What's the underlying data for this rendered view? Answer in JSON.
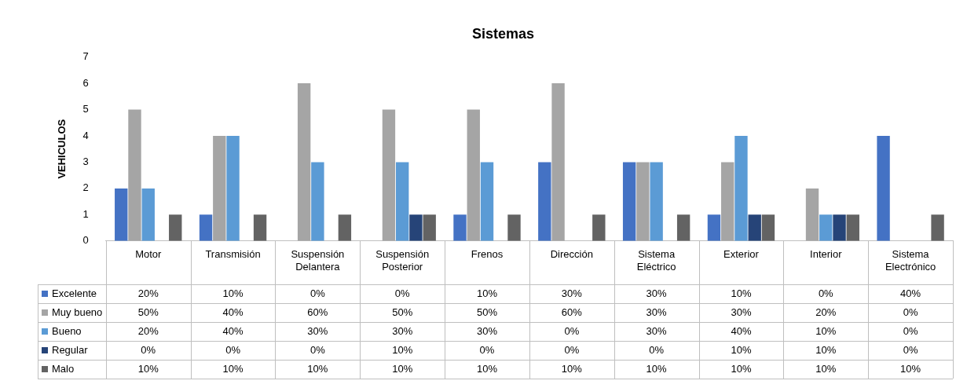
{
  "chart_data": {
    "type": "bar",
    "title": "Sistemas",
    "ylabel": "VEHICULOS",
    "categories": [
      "Motor",
      "Transmisión",
      "Suspensión Delantera",
      "Suspensión Posterior",
      "Frenos",
      "Dirección",
      "Sistema Eléctrico",
      "Exterior",
      "Interior",
      "Sistema Electrónico"
    ],
    "series": [
      {
        "name": "Excelente",
        "color": "#4472c4",
        "values": [
          2,
          1,
          0,
          0,
          1,
          3,
          3,
          1,
          0,
          4
        ]
      },
      {
        "name": "Muy bueno",
        "color": "#a5a5a5",
        "values": [
          5,
          4,
          6,
          5,
          5,
          6,
          3,
          3,
          2,
          0
        ]
      },
      {
        "name": "Bueno",
        "color": "#5b9bd5",
        "values": [
          2,
          4,
          3,
          3,
          3,
          0,
          3,
          4,
          1,
          0
        ]
      },
      {
        "name": "Regular",
        "color": "#264478",
        "values": [
          0,
          0,
          0,
          1,
          0,
          0,
          0,
          1,
          1,
          0
        ]
      },
      {
        "name": "Malo",
        "color": "#636363",
        "values": [
          1,
          1,
          1,
          1,
          1,
          1,
          1,
          1,
          1,
          1
        ]
      }
    ],
    "annotations": [
      "20%",
      "10%",
      "0%",
      "0%",
      "10%",
      "30%",
      "30%",
      "10%",
      "0%",
      "40%",
      "50%",
      "40%",
      "60%",
      "50%",
      "50%",
      "60%",
      "30%",
      "30%",
      "20%",
      "0%",
      "20%",
      "40%",
      "30%",
      "30%",
      "30%",
      "0%",
      "30%",
      "40%",
      "10%",
      "0%",
      "0%",
      "0%",
      "0%",
      "10%",
      "0%",
      "0%",
      "0%",
      "10%",
      "10%",
      "0%",
      "10%",
      "10%",
      "10%",
      "10%",
      "10%",
      "10%",
      "10%",
      "10%",
      "10%",
      "10%"
    ],
    "ylim": [
      0,
      7
    ],
    "yticks": [
      0,
      1,
      2,
      3,
      4,
      5,
      6,
      7
    ],
    "grid": false,
    "legend": "bottom"
  }
}
